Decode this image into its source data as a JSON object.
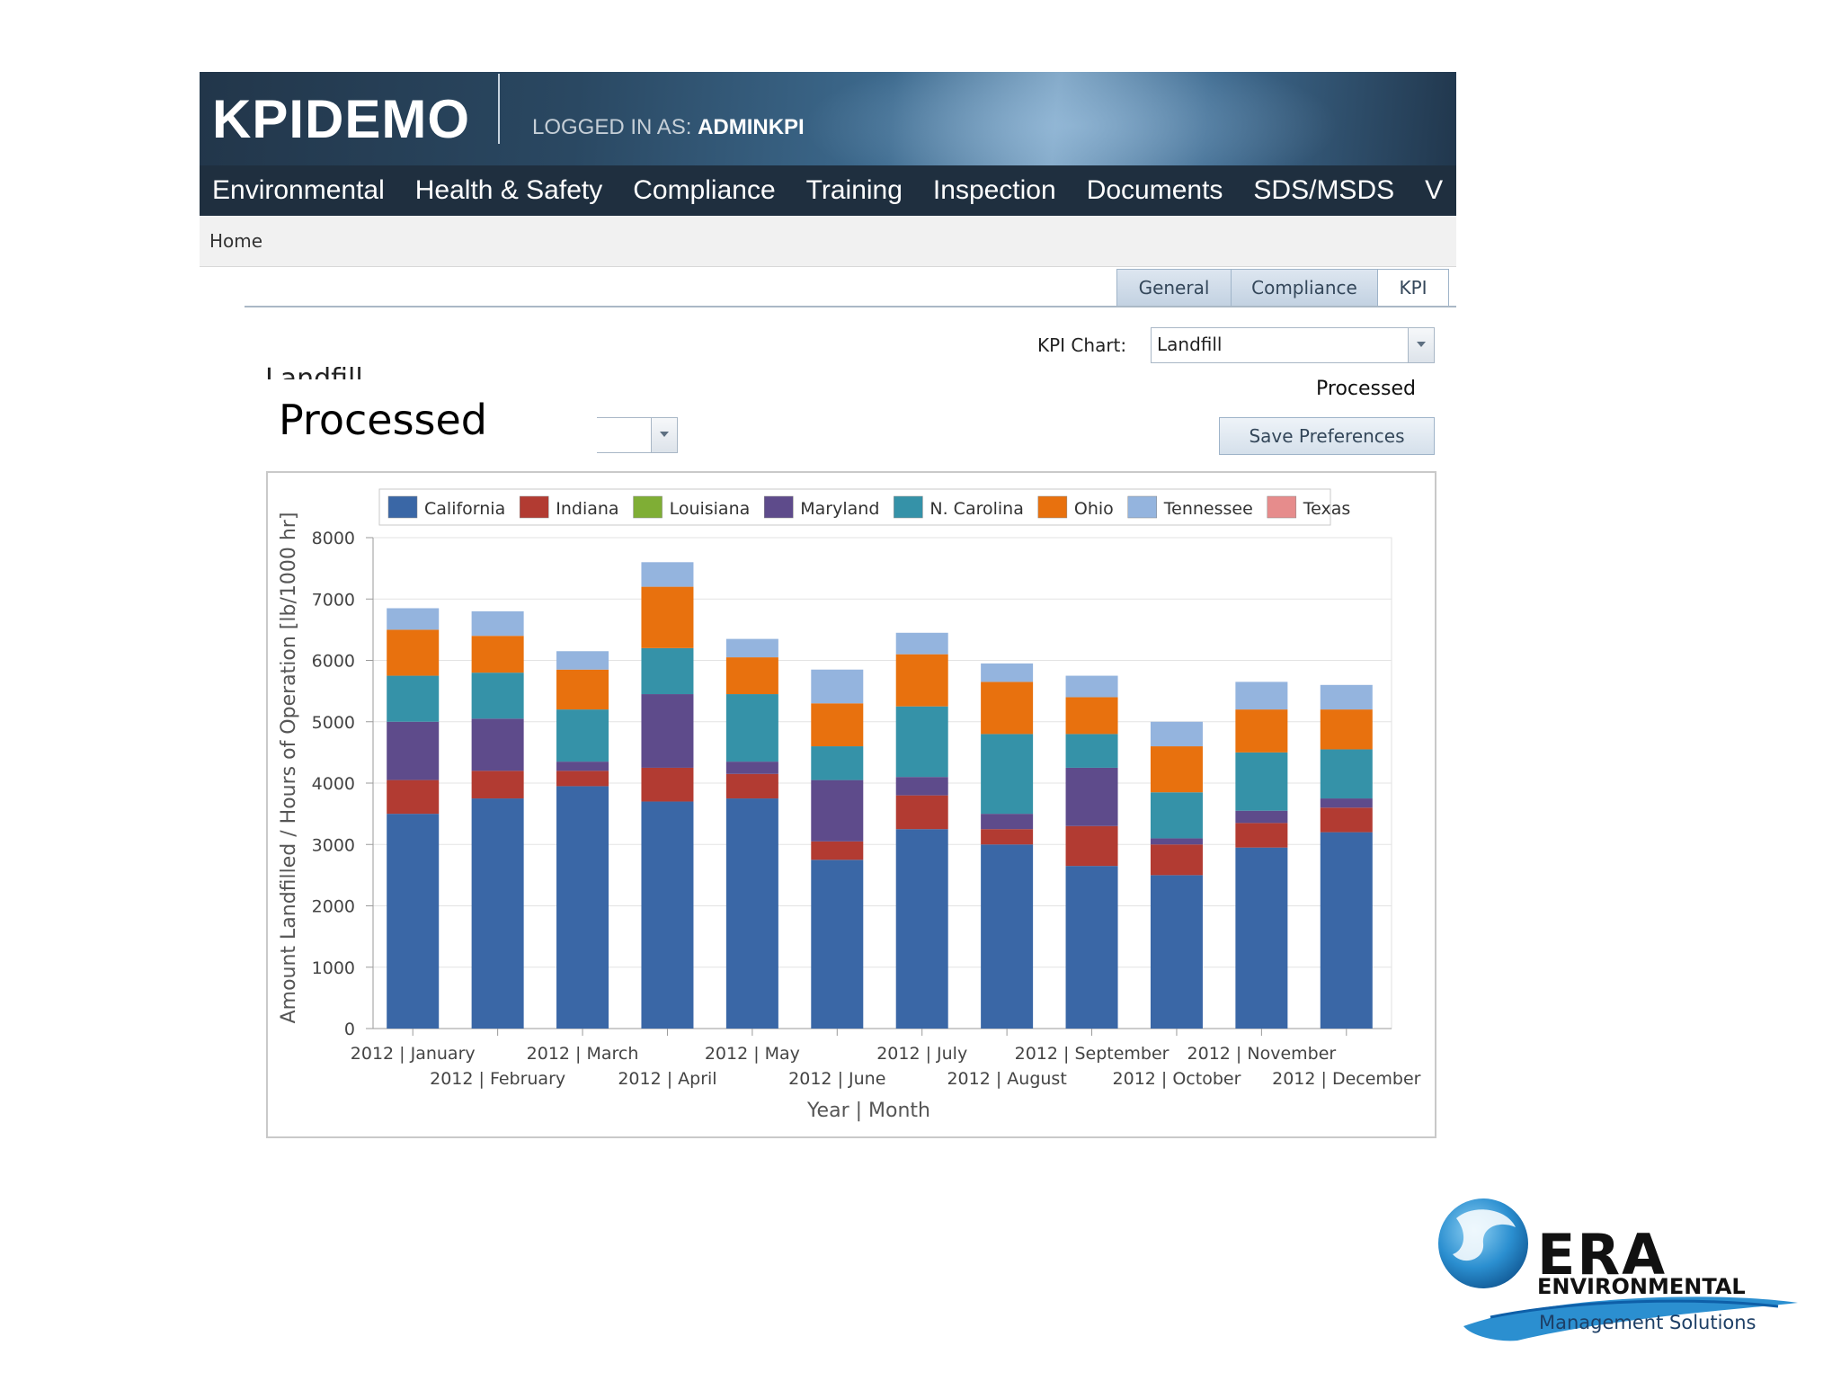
{
  "header": {
    "app_title": "KPIDEMO",
    "login_prefix": "LOGGED IN AS: ",
    "login_user": "ADMINKPI"
  },
  "nav": {
    "items": [
      "Environmental",
      "Health & Safety",
      "Compliance",
      "Training",
      "Inspection",
      "Documents",
      "SDS/MSDS",
      "V"
    ]
  },
  "breadcrumb": {
    "home": "Home"
  },
  "tabs": {
    "general": "General",
    "compliance": "Compliance",
    "kpi": "KPI",
    "active": "KPI"
  },
  "kpi_chart": {
    "label": "KPI Chart:",
    "selected": "Landfill"
  },
  "page": {
    "landfill_title": "Landfill",
    "processed_big": "Processed",
    "processed_small": "Processed",
    "save_button": "Save Preferences"
  },
  "chart_data": {
    "type": "bar",
    "stacked": true,
    "title": "",
    "xlabel": "Year | Month",
    "ylabel": "Amount Landfilled / Hours of Operation [lb/1000 hr]",
    "ylim": [
      0,
      8000
    ],
    "yticks": [
      0,
      1000,
      2000,
      3000,
      4000,
      5000,
      6000,
      7000,
      8000
    ],
    "grid": true,
    "legend_position": "top",
    "categories": [
      "2012 | January",
      "2012 | February",
      "2012 | March",
      "2012 | April",
      "2012 | May",
      "2012 | June",
      "2012 | July",
      "2012 | August",
      "2012 | September",
      "2012 | October",
      "2012 | November",
      "2012 | December"
    ],
    "series": [
      {
        "name": "California",
        "color": "#3a67a6",
        "values": [
          3500,
          3750,
          3950,
          3700,
          3750,
          2750,
          3250,
          3000,
          2650,
          2500,
          2950,
          3200
        ]
      },
      {
        "name": "Indiana",
        "color": "#b23b32",
        "values": [
          550,
          450,
          250,
          550,
          400,
          300,
          550,
          250,
          650,
          500,
          400,
          400
        ]
      },
      {
        "name": "Louisiana",
        "color": "#7fae35",
        "values": [
          0,
          0,
          0,
          0,
          0,
          0,
          0,
          0,
          0,
          0,
          0,
          0
        ]
      },
      {
        "name": "Maryland",
        "color": "#5e4b8b",
        "values": [
          950,
          850,
          150,
          1200,
          200,
          1000,
          300,
          250,
          950,
          100,
          200,
          150
        ]
      },
      {
        "name": "N. Carolina",
        "color": "#3592a8",
        "values": [
          750,
          750,
          850,
          750,
          1100,
          550,
          1150,
          1300,
          550,
          750,
          950,
          800
        ]
      },
      {
        "name": "Ohio",
        "color": "#e8710e",
        "values": [
          750,
          600,
          650,
          1000,
          600,
          700,
          850,
          850,
          600,
          750,
          700,
          650
        ]
      },
      {
        "name": "Tennessee",
        "color": "#94b4de",
        "values": [
          350,
          400,
          300,
          400,
          300,
          550,
          350,
          300,
          350,
          400,
          450,
          400
        ]
      },
      {
        "name": "Texas",
        "color": "#e68c8c",
        "values": [
          0,
          0,
          0,
          0,
          0,
          0,
          0,
          0,
          0,
          0,
          0,
          0
        ]
      }
    ]
  },
  "footer_logo": {
    "name": "ERA",
    "line2": "ENVIRONMENTAL",
    "line3": "Management Solutions"
  }
}
